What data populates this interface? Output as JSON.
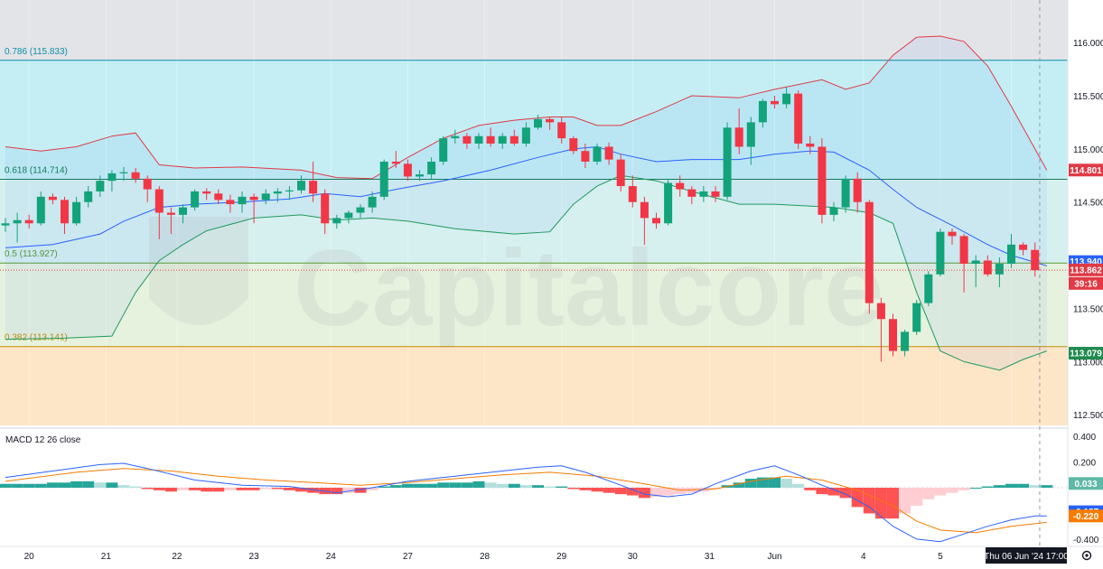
{
  "chart_data": {
    "type": "candlestick",
    "watermark": "Capitalcore",
    "price_axis": {
      "ylim": [
        112.4,
        116.4
      ],
      "ticks": [
        "116.000",
        "115.500",
        "115.000",
        "114.500",
        "113.500",
        "113.000",
        "112.500"
      ]
    },
    "time_axis": {
      "labels": [
        {
          "text": "20",
          "index": 2
        },
        {
          "text": "21",
          "index": 8.5
        },
        {
          "text": "22",
          "index": 14.5
        },
        {
          "text": "23",
          "index": 21
        },
        {
          "text": "24",
          "index": 27.5
        },
        {
          "text": "27",
          "index": 34
        },
        {
          "text": "28",
          "index": 40.5
        },
        {
          "text": "29",
          "index": 47
        },
        {
          "text": "30",
          "index": 53
        },
        {
          "text": "31",
          "index": 59.5
        },
        {
          "text": "Jun",
          "index": 65
        },
        {
          "text": "4",
          "index": 72.5
        },
        {
          "text": "5",
          "index": 79
        },
        {
          "text": "6",
          "index": 85
        }
      ],
      "cursor_label": "Thu 06 Jun '24   17:00"
    },
    "fib_levels": [
      {
        "label": "0.786 (115.833)",
        "price": 115.833,
        "color": "#0b8ea6"
      },
      {
        "label": "0.618 (114.714)",
        "price": 114.714,
        "color": "#187b51"
      },
      {
        "label": "0.5 (113.927)",
        "price": 113.927,
        "color": "#5a9a37"
      },
      {
        "label": "0.382 (113.141)",
        "price": 113.141,
        "color": "#c48d00"
      }
    ],
    "candles": [
      [
        114.28,
        114.35,
        114.22,
        114.3
      ],
      [
        114.3,
        114.4,
        114.12,
        114.33
      ],
      [
        114.33,
        114.38,
        114.25,
        114.3
      ],
      [
        114.3,
        114.6,
        114.28,
        114.55
      ],
      [
        114.55,
        114.58,
        114.48,
        114.52
      ],
      [
        114.52,
        114.55,
        114.2,
        114.3
      ],
      [
        114.3,
        114.55,
        114.28,
        114.5
      ],
      [
        114.5,
        114.65,
        114.45,
        114.6
      ],
      [
        114.6,
        114.75,
        114.55,
        114.7
      ],
      [
        114.7,
        114.8,
        114.6,
        114.77
      ],
      [
        114.77,
        114.83,
        114.7,
        114.78
      ],
      [
        114.78,
        114.82,
        114.68,
        114.72
      ],
      [
        114.72,
        114.75,
        114.5,
        114.62
      ],
      [
        114.62,
        114.65,
        114.15,
        114.4
      ],
      [
        114.4,
        114.45,
        114.2,
        114.38
      ],
      [
        114.38,
        114.48,
        114.3,
        114.45
      ],
      [
        114.45,
        114.62,
        114.42,
        114.6
      ],
      [
        114.6,
        114.63,
        114.52,
        114.58
      ],
      [
        114.58,
        114.62,
        114.48,
        114.52
      ],
      [
        114.52,
        114.57,
        114.4,
        114.48
      ],
      [
        114.48,
        114.6,
        114.4,
        114.55
      ],
      [
        114.55,
        114.58,
        114.3,
        114.52
      ],
      [
        114.52,
        114.62,
        114.48,
        114.58
      ],
      [
        114.58,
        114.63,
        114.5,
        114.6
      ],
      [
        114.6,
        114.65,
        114.52,
        114.61
      ],
      [
        114.61,
        114.75,
        114.58,
        114.7
      ],
      [
        114.7,
        114.88,
        114.5,
        114.58
      ],
      [
        114.58,
        114.62,
        114.2,
        114.3
      ],
      [
        114.3,
        114.38,
        114.25,
        114.35
      ],
      [
        114.35,
        114.42,
        114.3,
        114.4
      ],
      [
        114.4,
        114.48,
        114.35,
        114.45
      ],
      [
        114.45,
        114.6,
        114.4,
        114.55
      ],
      [
        114.55,
        114.9,
        114.52,
        114.88
      ],
      [
        114.88,
        114.98,
        114.82,
        114.86
      ],
      [
        114.86,
        114.9,
        114.7,
        114.74
      ],
      [
        114.74,
        114.8,
        114.7,
        114.76
      ],
      [
        114.76,
        114.92,
        114.72,
        114.88
      ],
      [
        114.88,
        115.12,
        114.85,
        115.1
      ],
      [
        115.1,
        115.18,
        115.05,
        115.12
      ],
      [
        115.12,
        115.15,
        115.0,
        115.05
      ],
      [
        115.05,
        115.15,
        115.0,
        115.12
      ],
      [
        115.12,
        115.2,
        115.02,
        115.05
      ],
      [
        115.05,
        115.15,
        115.0,
        115.12
      ],
      [
        115.12,
        115.18,
        115.03,
        115.05
      ],
      [
        115.05,
        115.25,
        115.02,
        115.2
      ],
      [
        115.2,
        115.32,
        115.18,
        115.28
      ],
      [
        115.28,
        115.3,
        115.18,
        115.25
      ],
      [
        115.25,
        115.3,
        115.05,
        115.1
      ],
      [
        115.1,
        115.12,
        114.95,
        114.98
      ],
      [
        114.98,
        115.05,
        114.82,
        114.88
      ],
      [
        114.88,
        115.05,
        114.85,
        115.02
      ],
      [
        115.02,
        115.06,
        114.85,
        114.9
      ],
      [
        114.9,
        114.95,
        114.6,
        114.65
      ],
      [
        114.65,
        114.75,
        114.45,
        114.5
      ],
      [
        114.5,
        114.55,
        114.1,
        114.35
      ],
      [
        114.35,
        114.4,
        114.25,
        114.3
      ],
      [
        114.3,
        114.72,
        114.28,
        114.68
      ],
      [
        114.68,
        114.75,
        114.55,
        114.62
      ],
      [
        114.62,
        114.65,
        114.48,
        114.55
      ],
      [
        114.55,
        114.65,
        114.5,
        114.6
      ],
      [
        114.6,
        114.65,
        114.5,
        114.55
      ],
      [
        114.55,
        115.25,
        114.52,
        115.2
      ],
      [
        115.2,
        115.38,
        114.95,
        115.02
      ],
      [
        115.02,
        115.3,
        114.85,
        115.25
      ],
      [
        115.25,
        115.47,
        115.2,
        115.45
      ],
      [
        115.45,
        115.5,
        115.38,
        115.42
      ],
      [
        115.42,
        115.58,
        115.38,
        115.52
      ],
      [
        115.52,
        115.55,
        115.0,
        115.05
      ],
      [
        115.05,
        115.12,
        114.95,
        115.02
      ],
      [
        115.02,
        115.1,
        114.3,
        114.38
      ],
      [
        114.38,
        114.5,
        114.32,
        114.45
      ],
      [
        114.45,
        114.75,
        114.4,
        114.72
      ],
      [
        114.72,
        114.78,
        114.4,
        114.5
      ],
      [
        114.5,
        114.52,
        113.45,
        113.55
      ],
      [
        113.55,
        113.6,
        113.0,
        113.4
      ],
      [
        113.4,
        113.45,
        113.05,
        113.1
      ],
      [
        113.1,
        113.3,
        113.05,
        113.28
      ],
      [
        113.28,
        113.58,
        113.25,
        113.55
      ],
      [
        113.55,
        113.85,
        113.52,
        113.82
      ],
      [
        113.82,
        114.25,
        113.8,
        114.22
      ],
      [
        114.22,
        114.25,
        114.1,
        114.18
      ],
      [
        114.18,
        114.2,
        113.65,
        113.92
      ],
      [
        113.92,
        114.0,
        113.7,
        113.95
      ],
      [
        113.95,
        114.0,
        113.8,
        113.82
      ],
      [
        113.82,
        113.98,
        113.7,
        113.92
      ],
      [
        113.92,
        114.2,
        113.88,
        114.1
      ],
      [
        114.1,
        114.12,
        114.0,
        114.05
      ],
      [
        114.05,
        114.12,
        113.8,
        113.86
      ]
    ],
    "bollinger": {
      "upper": [
        [
          0,
          115.02
        ],
        [
          3,
          114.98
        ],
        [
          6,
          115.02
        ],
        [
          9,
          115.12
        ],
        [
          11,
          115.15
        ],
        [
          13,
          114.85
        ],
        [
          16,
          114.82
        ],
        [
          20,
          114.83
        ],
        [
          25,
          114.8
        ],
        [
          28,
          114.73
        ],
        [
          31,
          114.72
        ],
        [
          34,
          114.92
        ],
        [
          37,
          115.1
        ],
        [
          40,
          115.22
        ],
        [
          43,
          115.27
        ],
        [
          46,
          115.3
        ],
        [
          48,
          115.3
        ],
        [
          50,
          115.22
        ],
        [
          52,
          115.22
        ],
        [
          55,
          115.35
        ],
        [
          58,
          115.5
        ],
        [
          62,
          115.48
        ],
        [
          65,
          115.56
        ],
        [
          69,
          115.65
        ],
        [
          71,
          115.56
        ],
        [
          73,
          115.62
        ],
        [
          75,
          115.88
        ],
        [
          77,
          116.05
        ],
        [
          79,
          116.06
        ],
        [
          81,
          116.01
        ],
        [
          83,
          115.78
        ],
        [
          85,
          115.4
        ],
        [
          87,
          115.0
        ],
        [
          88,
          114.8
        ]
      ],
      "middle": [
        [
          0,
          114.07
        ],
        [
          4,
          114.1
        ],
        [
          8,
          114.2
        ],
        [
          10,
          114.32
        ],
        [
          13,
          114.45
        ],
        [
          16,
          114.48
        ],
        [
          20,
          114.5
        ],
        [
          24,
          114.53
        ],
        [
          27,
          114.58
        ],
        [
          30,
          114.55
        ],
        [
          33,
          114.62
        ],
        [
          37,
          114.7
        ],
        [
          41,
          114.8
        ],
        [
          45,
          114.92
        ],
        [
          48,
          115.0
        ],
        [
          50,
          115.02
        ],
        [
          52,
          114.95
        ],
        [
          55,
          114.88
        ],
        [
          58,
          114.9
        ],
        [
          62,
          114.9
        ],
        [
          65,
          114.95
        ],
        [
          68,
          114.98
        ],
        [
          70,
          114.97
        ],
        [
          73,
          114.8
        ],
        [
          75,
          114.62
        ],
        [
          77,
          114.45
        ],
        [
          80,
          114.28
        ],
        [
          83,
          114.1
        ],
        [
          85,
          114.0
        ],
        [
          88,
          113.9
        ]
      ],
      "lower": [
        [
          0,
          113.21
        ],
        [
          5,
          113.22
        ],
        [
          9,
          113.24
        ],
        [
          11,
          113.65
        ],
        [
          13,
          113.95
        ],
        [
          15,
          114.1
        ],
        [
          17,
          114.23
        ],
        [
          21,
          114.35
        ],
        [
          25,
          114.38
        ],
        [
          28,
          114.33
        ],
        [
          31,
          114.35
        ],
        [
          34,
          114.32
        ],
        [
          38,
          114.25
        ],
        [
          43,
          114.2
        ],
        [
          46,
          114.22
        ],
        [
          48,
          114.48
        ],
        [
          50,
          114.65
        ],
        [
          52,
          114.75
        ],
        [
          55,
          114.7
        ],
        [
          58,
          114.6
        ],
        [
          62,
          114.48
        ],
        [
          65,
          114.48
        ],
        [
          70,
          114.45
        ],
        [
          73,
          114.4
        ],
        [
          75,
          114.3
        ],
        [
          77,
          113.65
        ],
        [
          79,
          113.1
        ],
        [
          81,
          113.0
        ],
        [
          84,
          112.92
        ],
        [
          86,
          113.02
        ],
        [
          88,
          113.1
        ]
      ]
    },
    "price_badges": [
      {
        "text": "114.801",
        "price": 114.801,
        "bg": "#e03a45"
      },
      {
        "text": "113.940",
        "price": 113.94,
        "bg": "#2962ff"
      },
      {
        "text": "113.862",
        "price": 113.862,
        "bg": "#e03a45"
      },
      {
        "text": "39:16",
        "price": 113.735,
        "bg": "#e03a45"
      },
      {
        "text": "113.079",
        "price": 113.079,
        "bg": "#1f8a4e"
      }
    ],
    "macd": {
      "title": "MACD 12 26 close",
      "ylim": [
        -0.45,
        0.45
      ],
      "ticks": [
        "0.400",
        "0.200",
        "-0.400"
      ],
      "macd_line": [
        [
          0,
          0.08
        ],
        [
          4,
          0.13
        ],
        [
          8,
          0.18
        ],
        [
          10,
          0.19
        ],
        [
          12,
          0.15
        ],
        [
          16,
          0.06
        ],
        [
          20,
          0.02
        ],
        [
          24,
          0.01
        ],
        [
          28,
          -0.04
        ],
        [
          31,
          0.0
        ],
        [
          34,
          0.05
        ],
        [
          38,
          0.09
        ],
        [
          42,
          0.13
        ],
        [
          45,
          0.16
        ],
        [
          47,
          0.17
        ],
        [
          49,
          0.12
        ],
        [
          52,
          0.02
        ],
        [
          54,
          -0.05
        ],
        [
          56,
          -0.07
        ],
        [
          58,
          -0.05
        ],
        [
          60,
          0.03
        ],
        [
          63,
          0.13
        ],
        [
          65,
          0.17
        ],
        [
          67,
          0.1
        ],
        [
          69,
          0.02
        ],
        [
          71,
          -0.05
        ],
        [
          73,
          -0.15
        ],
        [
          75,
          -0.3
        ],
        [
          77,
          -0.4
        ],
        [
          79,
          -0.42
        ],
        [
          81,
          -0.36
        ],
        [
          83,
          -0.3
        ],
        [
          85,
          -0.25
        ],
        [
          87,
          -0.22
        ],
        [
          88,
          -0.22
        ]
      ],
      "signal_line": [
        [
          0,
          0.05
        ],
        [
          6,
          0.12
        ],
        [
          10,
          0.15
        ],
        [
          14,
          0.13
        ],
        [
          18,
          0.09
        ],
        [
          22,
          0.06
        ],
        [
          26,
          0.04
        ],
        [
          30,
          0.02
        ],
        [
          34,
          0.04
        ],
        [
          38,
          0.07
        ],
        [
          42,
          0.1
        ],
        [
          46,
          0.12
        ],
        [
          50,
          0.09
        ],
        [
          54,
          0.03
        ],
        [
          57,
          -0.02
        ],
        [
          60,
          -0.01
        ],
        [
          63,
          0.05
        ],
        [
          66,
          0.09
        ],
        [
          69,
          0.06
        ],
        [
          72,
          -0.02
        ],
        [
          75,
          -0.14
        ],
        [
          77,
          -0.26
        ],
        [
          79,
          -0.33
        ],
        [
          82,
          -0.35
        ],
        [
          85,
          -0.3
        ],
        [
          88,
          -0.27
        ]
      ],
      "histogram": [
        0.03,
        0.03,
        0.03,
        0.03,
        0.04,
        0.04,
        0.05,
        0.05,
        0.04,
        0.04,
        0.02,
        0.01,
        -0.01,
        -0.02,
        -0.03,
        -0.02,
        -0.02,
        -0.03,
        -0.03,
        -0.02,
        -0.02,
        -0.02,
        -0.01,
        -0.01,
        -0.02,
        -0.03,
        -0.04,
        -0.05,
        -0.05,
        -0.04,
        -0.04,
        -0.02,
        0.01,
        0.02,
        0.03,
        0.03,
        0.03,
        0.04,
        0.04,
        0.04,
        0.05,
        0.04,
        0.03,
        0.03,
        0.02,
        0.02,
        0.01,
        0.01,
        -0.01,
        -0.02,
        -0.03,
        -0.04,
        -0.05,
        -0.06,
        -0.08,
        -0.07,
        -0.06,
        -0.05,
        -0.04,
        -0.03,
        -0.01,
        0.02,
        0.04,
        0.07,
        0.08,
        0.08,
        0.07,
        0.03,
        -0.02,
        -0.05,
        -0.06,
        -0.08,
        -0.15,
        -0.2,
        -0.24,
        -0.24,
        -0.2,
        -0.14,
        -0.09,
        -0.06,
        -0.04,
        -0.02,
        0.0,
        0.01,
        0.02,
        0.03,
        0.03,
        0.02,
        0.02
      ],
      "badges": [
        {
          "text": "0.033",
          "value": 0.033,
          "bg": "#5fb8a8"
        },
        {
          "text": "-0.187",
          "value": -0.187,
          "bg": "#2962ff"
        },
        {
          "text": "-0.220",
          "value": -0.22,
          "bg": "#f57c00"
        }
      ]
    }
  }
}
